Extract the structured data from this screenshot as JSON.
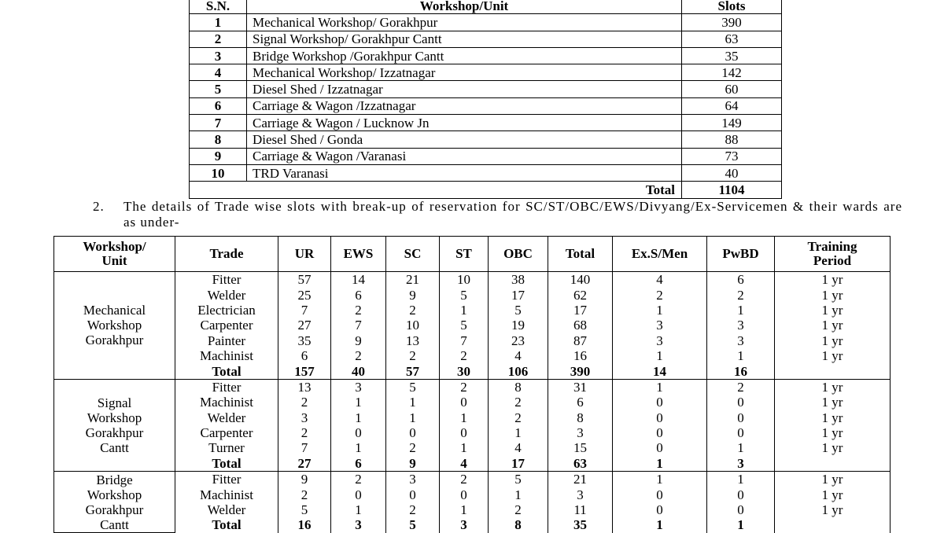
{
  "workshop_table": {
    "headers": [
      "S.N.",
      "Workshop/Unit",
      "Slots"
    ],
    "rows": [
      [
        1,
        "Mechanical Workshop/ Gorakhpur",
        390
      ],
      [
        2,
        "Signal Workshop/ Gorakhpur Cantt",
        63
      ],
      [
        3,
        "Bridge Workshop /Gorakhpur Cantt",
        35
      ],
      [
        4,
        "Mechanical Workshop/ Izzatnagar",
        142
      ],
      [
        5,
        "Diesel Shed / Izzatnagar",
        60
      ],
      [
        6,
        "Carriage & Wagon /Izzatnagar",
        64
      ],
      [
        7,
        "Carriage & Wagon / Lucknow Jn",
        149
      ],
      [
        8,
        "Diesel Shed  / Gonda",
        88
      ],
      [
        9,
        "Carriage & Wagon /Varanasi",
        73
      ],
      [
        10,
        "TRD Varanasi",
        40
      ]
    ],
    "total": {
      "label": "Total",
      "value": 1104
    }
  },
  "paragraph": {
    "number": "2.",
    "text": "The details of Trade wise slots with break-up of reservation for SC/ST/OBC/EWS/Divyang/Ex-Servicemen & their wards are as under-"
  },
  "trade_table": {
    "headers": [
      [
        "Workshop/",
        "Unit"
      ],
      [
        "Trade"
      ],
      [
        "UR"
      ],
      [
        "EWS"
      ],
      [
        "SC"
      ],
      [
        "ST"
      ],
      [
        "OBC"
      ],
      [
        "Total"
      ],
      [
        "Ex.S/Men"
      ],
      [
        "PwBD"
      ],
      [
        "Training",
        "Period"
      ]
    ],
    "groups": [
      {
        "unit": [
          "Mechanical",
          "Workshop",
          "Gorakhpur"
        ],
        "rows": [
          [
            "Fitter",
            57,
            14,
            21,
            10,
            38,
            140,
            4,
            6,
            "1 yr"
          ],
          [
            "Welder",
            25,
            6,
            9,
            5,
            17,
            62,
            2,
            2,
            "1 yr"
          ],
          [
            "Electrician",
            7,
            2,
            2,
            1,
            5,
            17,
            1,
            1,
            "1 yr"
          ],
          [
            "Carpenter",
            27,
            7,
            10,
            5,
            19,
            68,
            3,
            3,
            "1 yr"
          ],
          [
            "Painter",
            35,
            9,
            13,
            7,
            23,
            87,
            3,
            3,
            "1 yr"
          ],
          [
            "Machinist",
            6,
            2,
            2,
            2,
            4,
            16,
            1,
            1,
            "1 yr"
          ]
        ],
        "total": [
          "Total",
          157,
          40,
          57,
          30,
          106,
          390,
          14,
          16
        ]
      },
      {
        "unit": [
          "Signal",
          "Workshop",
          "Gorakhpur",
          "Cantt"
        ],
        "rows": [
          [
            "Fitter",
            13,
            3,
            5,
            2,
            8,
            31,
            1,
            2,
            "1 yr"
          ],
          [
            "Machinist",
            2,
            1,
            1,
            0,
            2,
            6,
            0,
            0,
            "1 yr"
          ],
          [
            "Welder",
            3,
            1,
            1,
            1,
            2,
            8,
            0,
            0,
            "1 yr"
          ],
          [
            "Carpenter",
            2,
            0,
            0,
            0,
            1,
            3,
            0,
            0,
            "1 yr"
          ],
          [
            "Turner",
            7,
            1,
            2,
            1,
            4,
            15,
            0,
            1,
            "1 yr"
          ]
        ],
        "total": [
          "Total",
          27,
          6,
          9,
          4,
          17,
          63,
          1,
          3
        ]
      },
      {
        "unit": [
          "Bridge",
          "Workshop",
          "Gorakhpur",
          "Cantt"
        ],
        "rows": [
          [
            "Fitter",
            9,
            2,
            3,
            2,
            5,
            21,
            1,
            1,
            "1 yr"
          ],
          [
            "Machinist",
            2,
            0,
            0,
            0,
            1,
            3,
            0,
            0,
            "1 yr"
          ],
          [
            "Welder",
            5,
            1,
            2,
            1,
            2,
            11,
            0,
            0,
            "1 yr"
          ]
        ],
        "total": [
          "Total",
          16,
          3,
          5,
          3,
          8,
          35,
          1,
          1
        ]
      }
    ]
  }
}
